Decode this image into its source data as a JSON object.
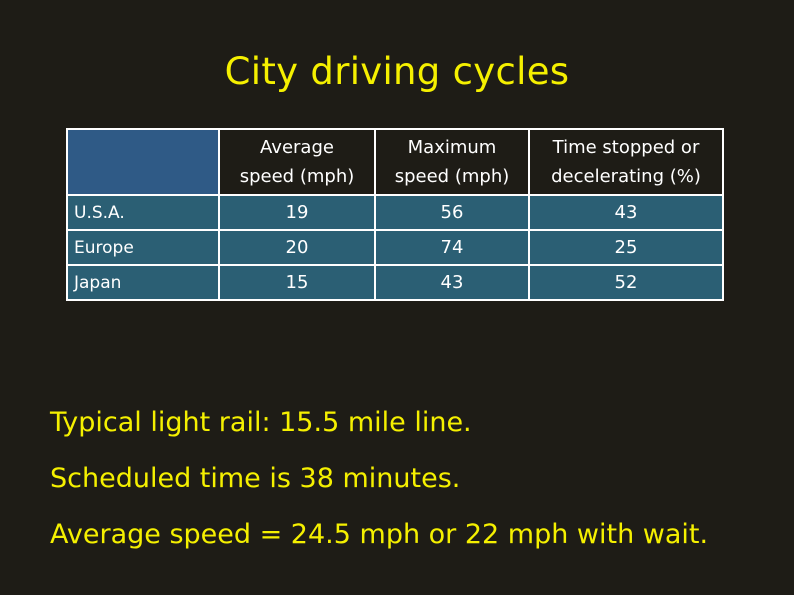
{
  "title": "City driving cycles",
  "table": {
    "columns": [
      "",
      "Average speed (mph)",
      "Maximum speed (mph)",
      "Time stopped or decelerating (%)"
    ],
    "column_lines": [
      [
        "Average",
        "speed (mph)"
      ],
      [
        "Maximum",
        "speed (mph)"
      ],
      [
        "Time stopped or",
        "decelerating (%)"
      ]
    ],
    "rows": [
      {
        "label": "U.S.A.",
        "average": "19",
        "maximum": "56",
        "stopped": "43"
      },
      {
        "label": "Europe",
        "average": "20",
        "maximum": "74",
        "stopped": "25"
      },
      {
        "label": "Japan",
        "average": "15",
        "maximum": "43",
        "stopped": "52"
      }
    ]
  },
  "notes": [
    "Typical light rail: 15.5 mile line.",
    "Scheduled time is 38 minutes.",
    "Average speed = 24.5 mph or 22 mph with wait."
  ],
  "colors": {
    "background": "#1e1c16",
    "title_text": "#f5f000",
    "header_blank_cell": "#2f5a86",
    "data_cell": "#2b5f74",
    "grid_line": "#ffffff"
  }
}
